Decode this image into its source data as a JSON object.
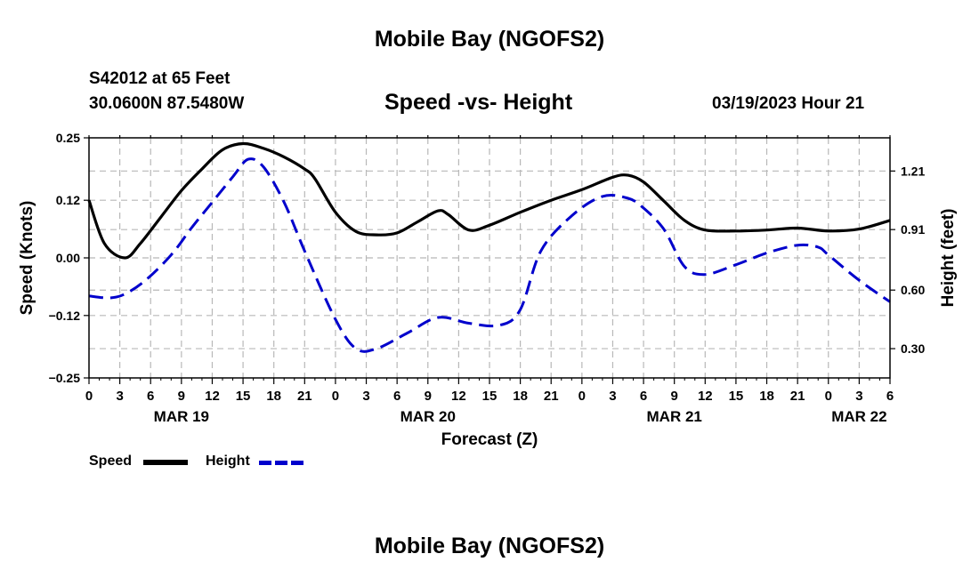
{
  "header": {
    "title": "Mobile Bay (NGOFS2)",
    "station": "S42012 at 65 Feet",
    "coords": "30.0600N  87.5480W",
    "datetime": "03/19/2023 Hour 21"
  },
  "footer": {
    "title": "Mobile Bay (NGOFS2)"
  },
  "legend": {
    "speed_label": "Speed",
    "height_label": "Height"
  },
  "chart_data": {
    "type": "line",
    "title": "Speed -vs- Height",
    "xlabel": "Forecast (Z)",
    "ylabel_left": "Speed (Knots)",
    "ylabel_right": "Height (feet)",
    "x_unit": "hours from 03/19 00Z",
    "xlim": [
      0,
      78
    ],
    "ylim_left": [
      -0.25,
      0.25
    ],
    "ylim_right": [
      0.15,
      1.38
    ],
    "x_tick_labels": [
      "0",
      "3",
      "6",
      "9",
      "12",
      "15",
      "18",
      "21",
      "0",
      "3",
      "6",
      "9",
      "12",
      "15",
      "18",
      "21",
      "0",
      "3",
      "6",
      "9",
      "12",
      "15",
      "18",
      "21",
      "0",
      "3",
      "6"
    ],
    "y_left_ticks": [
      {
        "value": 0.25,
        "label": "0.25"
      },
      {
        "value": 0.12,
        "label": "0.12"
      },
      {
        "value": 0.0,
        "label": "0.00"
      },
      {
        "value": -0.12,
        "label": "−0.12"
      },
      {
        "value": -0.25,
        "label": "−0.25"
      }
    ],
    "y_right_ticks": [
      {
        "value": 1.21,
        "label": "1.21"
      },
      {
        "value": 0.91,
        "label": "0.91"
      },
      {
        "value": 0.6,
        "label": "0.60"
      },
      {
        "value": 0.3,
        "label": "0.30"
      }
    ],
    "date_labels": [
      {
        "x": 9,
        "label": "MAR 19"
      },
      {
        "x": 33,
        "label": "MAR 20"
      },
      {
        "x": 57,
        "label": "MAR 21"
      },
      {
        "x": 75,
        "label": "MAR 22"
      }
    ],
    "grid": true,
    "series": [
      {
        "name": "Speed",
        "axis": "left",
        "color": "#000000",
        "style": "solid",
        "x": [
          0,
          1.5,
          3.5,
          5,
          7,
          9,
          11,
          13,
          15,
          17,
          19,
          21,
          22,
          24,
          26,
          28,
          30,
          32,
          34,
          35,
          37,
          39,
          42,
          45,
          48,
          51,
          52.5,
          54,
          56,
          58,
          60,
          63,
          66,
          69,
          72,
          75,
          78
        ],
        "y": [
          0.12,
          0.03,
          0.0,
          0.03,
          0.085,
          0.14,
          0.185,
          0.225,
          0.238,
          0.228,
          0.21,
          0.185,
          0.165,
          0.095,
          0.055,
          0.048,
          0.052,
          0.075,
          0.098,
          0.09,
          0.058,
          0.068,
          0.095,
          0.12,
          0.142,
          0.168,
          0.172,
          0.158,
          0.118,
          0.078,
          0.058,
          0.056,
          0.058,
          0.062,
          0.056,
          0.06,
          0.078
        ]
      },
      {
        "name": "Height",
        "axis": "right",
        "color": "#0000cc",
        "style": "dashed",
        "x": [
          0,
          2,
          3.5,
          5.5,
          8,
          10,
          12,
          14,
          15.5,
          17,
          19,
          21,
          24,
          26,
          28,
          31,
          34,
          37,
          40,
          42,
          44,
          47,
          50,
          52.5,
          54,
          56,
          58,
          60,
          63,
          66,
          69,
          71,
          72,
          75,
          78
        ],
        "y": [
          0.57,
          0.56,
          0.58,
          0.65,
          0.78,
          0.92,
          1.05,
          1.18,
          1.27,
          1.23,
          1.05,
          0.8,
          0.45,
          0.3,
          0.3,
          0.38,
          0.46,
          0.43,
          0.42,
          0.5,
          0.8,
          0.98,
          1.08,
          1.07,
          1.02,
          0.91,
          0.72,
          0.68,
          0.73,
          0.79,
          0.83,
          0.82,
          0.78,
          0.65,
          0.54
        ]
      }
    ]
  }
}
